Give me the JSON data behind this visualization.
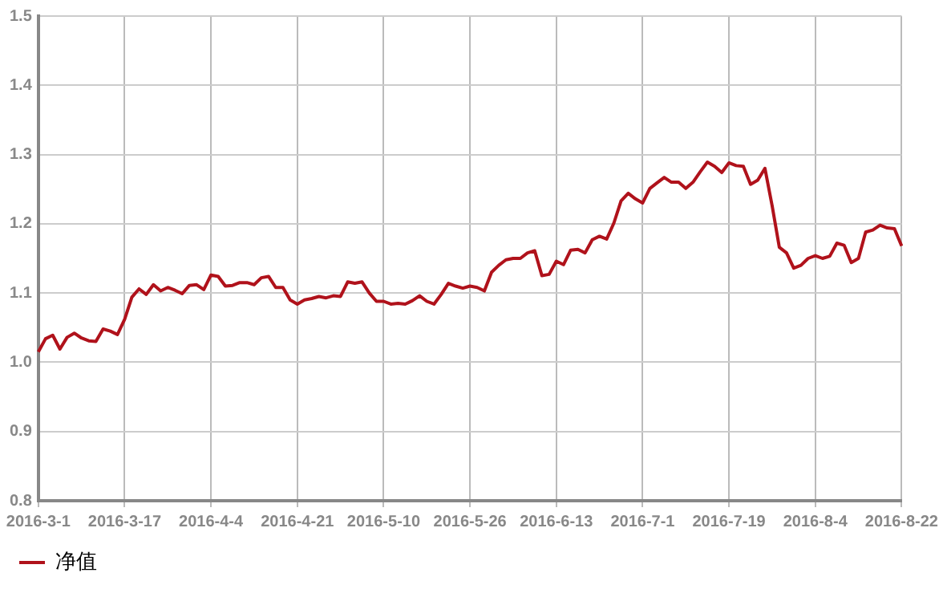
{
  "chart_data": {
    "type": "line",
    "categories": [
      "2016-3-1",
      null,
      null,
      null,
      null,
      null,
      null,
      null,
      null,
      null,
      null,
      null,
      "2016-3-17",
      null,
      null,
      null,
      null,
      null,
      null,
      null,
      null,
      null,
      null,
      null,
      "2016-4-4",
      null,
      null,
      null,
      null,
      null,
      null,
      null,
      null,
      null,
      null,
      null,
      "2016-4-21",
      null,
      null,
      null,
      null,
      null,
      null,
      null,
      null,
      null,
      null,
      null,
      "2016-5-10",
      null,
      null,
      null,
      null,
      null,
      null,
      null,
      null,
      null,
      null,
      null,
      "2016-5-26",
      null,
      null,
      null,
      null,
      null,
      null,
      null,
      null,
      null,
      null,
      null,
      "2016-6-13",
      null,
      null,
      null,
      null,
      null,
      null,
      null,
      null,
      null,
      null,
      null,
      "2016-7-1",
      null,
      null,
      null,
      null,
      null,
      null,
      null,
      null,
      null,
      null,
      null,
      "2016-7-19",
      null,
      null,
      null,
      null,
      null,
      null,
      null,
      null,
      null,
      null,
      null,
      "2016-8-4",
      null,
      null,
      null,
      null,
      null,
      null,
      null,
      null,
      null,
      null,
      null,
      "2016-8-22"
    ],
    "series": [
      {
        "name": "净值",
        "color": "#b0121b",
        "values": [
          1.015,
          1.034,
          1.039,
          1.019,
          1.036,
          1.042,
          1.035,
          1.031,
          1.03,
          1.048,
          1.045,
          1.04,
          1.062,
          1.094,
          1.106,
          1.098,
          1.112,
          1.103,
          1.108,
          1.104,
          1.099,
          1.111,
          1.112,
          1.105,
          1.126,
          1.124,
          1.11,
          1.111,
          1.115,
          1.115,
          1.112,
          1.122,
          1.124,
          1.108,
          1.108,
          1.09,
          1.084,
          1.09,
          1.092,
          1.095,
          1.093,
          1.096,
          1.095,
          1.116,
          1.114,
          1.116,
          1.1,
          1.088,
          1.088,
          1.084,
          1.085,
          1.084,
          1.089,
          1.096,
          1.088,
          1.084,
          1.098,
          1.114,
          1.11,
          1.107,
          1.11,
          1.108,
          1.103,
          1.13,
          1.14,
          1.148,
          1.15,
          1.15,
          1.158,
          1.161,
          1.125,
          1.127,
          1.146,
          1.141,
          1.162,
          1.163,
          1.158,
          1.177,
          1.182,
          1.178,
          1.201,
          1.233,
          1.244,
          1.236,
          1.23,
          1.251,
          1.259,
          1.267,
          1.26,
          1.26,
          1.251,
          1.26,
          1.275,
          1.289,
          1.283,
          1.274,
          1.288,
          1.284,
          1.283,
          1.257,
          1.263,
          1.28,
          1.226,
          1.166,
          1.158,
          1.136,
          1.14,
          1.15,
          1.154,
          1.15,
          1.153,
          1.172,
          1.169,
          1.144,
          1.15,
          1.188,
          1.191,
          1.198,
          1.194,
          1.193,
          1.168
        ]
      }
    ],
    "ylim": [
      0.8,
      1.5
    ],
    "yticks": [
      0.8,
      0.9,
      {
        "value": 1,
        "label": "1.0"
      },
      1.1,
      1.2,
      1.3,
      1.4,
      1.5
    ],
    "grid": true,
    "legend": "bottom left",
    "marker": "none",
    "line_style": "solid"
  }
}
